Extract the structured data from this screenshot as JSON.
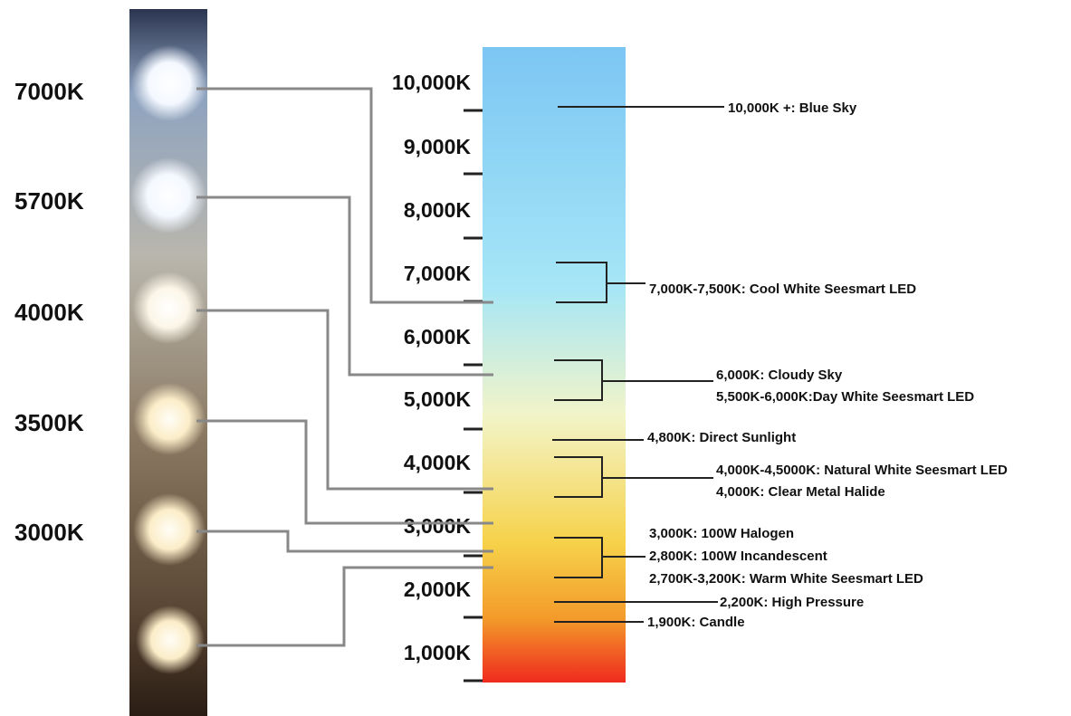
{
  "led_strip": {
    "labels": [
      "7000K",
      "5700K",
      "4000K",
      "3500K",
      "3000K"
    ]
  },
  "scale": {
    "tick_labels": [
      "10,000K",
      "9,000K",
      "8,000K",
      "7,000K",
      "6,000K",
      "5,000K",
      "4,000K",
      "3,000K",
      "2,000K",
      "1,000K"
    ],
    "colors": {
      "top": "#7cc6f4",
      "upper": "#a6e6f6",
      "mid": "#f2f4c8",
      "lower": "#f6d24a",
      "orange": "#f39a2a",
      "bottom": "#ef2a1e"
    }
  },
  "annotations": [
    "10,000K +: Blue Sky",
    "7,000K-7,500K: Cool White Seesmart LED",
    "6,000K: Cloudy Sky",
    "5,500K-6,000K:Day White Seesmart LED",
    "4,800K: Direct Sunlight",
    "4,000K-4,5000K: Natural White Seesmart LED",
    "4,000K: Clear Metal Halide",
    "3,000K: 100W Halogen",
    "2,800K: 100W Incandescent",
    "2,700K-3,200K: Warm White Seesmart LED",
    "2,200K: High Pressure",
    "1,900K: Candle"
  ]
}
